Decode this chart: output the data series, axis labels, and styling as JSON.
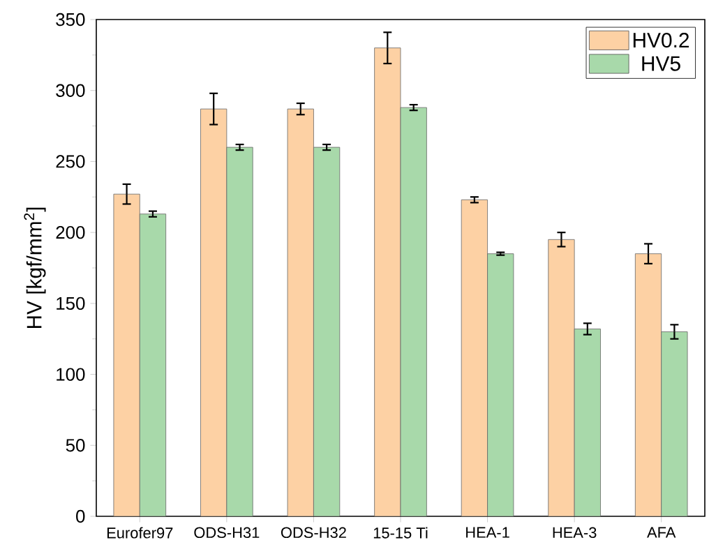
{
  "chart_data": {
    "type": "bar",
    "ylabel": "HV [kgf/mm$^{2}$]",
    "categories": [
      "Eurofer97",
      "ODS-H31",
      "ODS-H32",
      "15-15 Ti",
      "HEA-1",
      "HEA-3",
      "AFA"
    ],
    "series": [
      {
        "name": "HV0.2",
        "color": "#fdd1a4",
        "values": [
          227,
          287,
          287,
          330,
          223,
          195,
          185
        ],
        "errors": [
          7,
          11,
          4,
          11,
          2,
          5,
          7
        ]
      },
      {
        "name": "HV5",
        "color": "#a8d9aa",
        "values": [
          213,
          260,
          260,
          288,
          185,
          132,
          130
        ],
        "errors": [
          2,
          2,
          2,
          2,
          1,
          4,
          5
        ]
      }
    ],
    "ylim": [
      0,
      350
    ],
    "yticks": [
      0,
      50,
      100,
      150,
      200,
      250,
      300,
      350
    ],
    "legend": "top right",
    "grid": false
  }
}
